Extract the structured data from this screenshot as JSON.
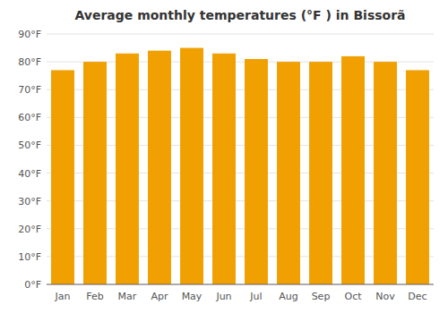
{
  "chart_data": {
    "type": "bar",
    "title": "Average monthly temperatures (°F ) in Bissorã",
    "categories": [
      "Jan",
      "Feb",
      "Mar",
      "Apr",
      "May",
      "Jun",
      "Jul",
      "Aug",
      "Sep",
      "Oct",
      "Nov",
      "Dec"
    ],
    "values": [
      77,
      80,
      83,
      84,
      85,
      83,
      81,
      80,
      80,
      82,
      80,
      77
    ],
    "color": "#F0A000",
    "ylim": [
      0,
      90
    ],
    "yticks": [
      {
        "value": 0,
        "label": "0°F"
      },
      {
        "value": 10,
        "label": "10°F"
      },
      {
        "value": 20,
        "label": "20°F"
      },
      {
        "value": 30,
        "label": "30°F"
      },
      {
        "value": 40,
        "label": "40°F"
      },
      {
        "value": 50,
        "label": "50°F"
      },
      {
        "value": 60,
        "label": "60°F"
      },
      {
        "value": 70,
        "label": "70°F"
      },
      {
        "value": 80,
        "label": "80°F"
      },
      {
        "value": 90,
        "label": "90°F"
      }
    ],
    "grid": true
  }
}
